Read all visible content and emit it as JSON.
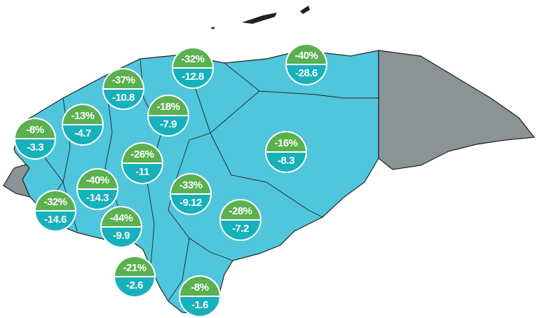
{
  "badges": [
    {
      "pct": "-32%",
      "value": "-12.8"
    },
    {
      "pct": "-40%",
      "value": "-28.6"
    },
    {
      "pct": "-37%",
      "value": "-10.8"
    },
    {
      "pct": "-13%",
      "value": "-4.7"
    },
    {
      "pct": "-18%",
      "value": "-7.9"
    },
    {
      "pct": "-8%",
      "value": "-3.3"
    },
    {
      "pct": "-16%",
      "value": "-8.3"
    },
    {
      "pct": "-26%",
      "value": "-11"
    },
    {
      "pct": "-40%",
      "value": "-14.3"
    },
    {
      "pct": "-33%",
      "value": "-9.12"
    },
    {
      "pct": "-32%",
      "value": "-14.6"
    },
    {
      "pct": "-28%",
      "value": "-7.2"
    },
    {
      "pct": "-44%",
      "value": "-9.9"
    },
    {
      "pct": "-21%",
      "value": "-2.6"
    },
    {
      "pct": "-8%",
      "value": "-1.6"
    }
  ]
}
